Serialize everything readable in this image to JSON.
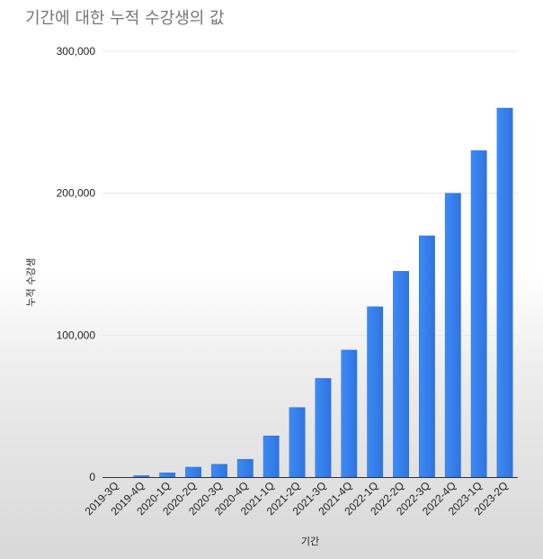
{
  "chart_data": {
    "type": "bar",
    "title": "기간에 대한 누적 수강생의 값",
    "xlabel": "기간",
    "ylabel": "누적 수강생",
    "categories": [
      "2019-3Q",
      "2019-4Q",
      "2020-1Q",
      "2020-2Q",
      "2020-3Q",
      "2020-4Q",
      "2021-1Q",
      "2021-2Q",
      "2021-3Q",
      "2021-4Q",
      "2022-1Q",
      "2022-2Q",
      "2022-3Q",
      "2022-4Q",
      "2023-1Q",
      "2023-2Q"
    ],
    "values": [
      0,
      1000,
      3000,
      7000,
      9000,
      12500,
      29000,
      49000,
      69500,
      89500,
      120000,
      145000,
      170000,
      200000,
      230000,
      260000
    ],
    "ylim": [
      0,
      300000
    ],
    "yticks": [
      0,
      100000,
      200000,
      300000
    ],
    "ytick_labels": [
      "0",
      "100,000",
      "200,000",
      "300,000"
    ],
    "grid": true,
    "legend": "none",
    "bar_color": "#3a86f0",
    "bar_color_dark": "#2d6fd6"
  }
}
